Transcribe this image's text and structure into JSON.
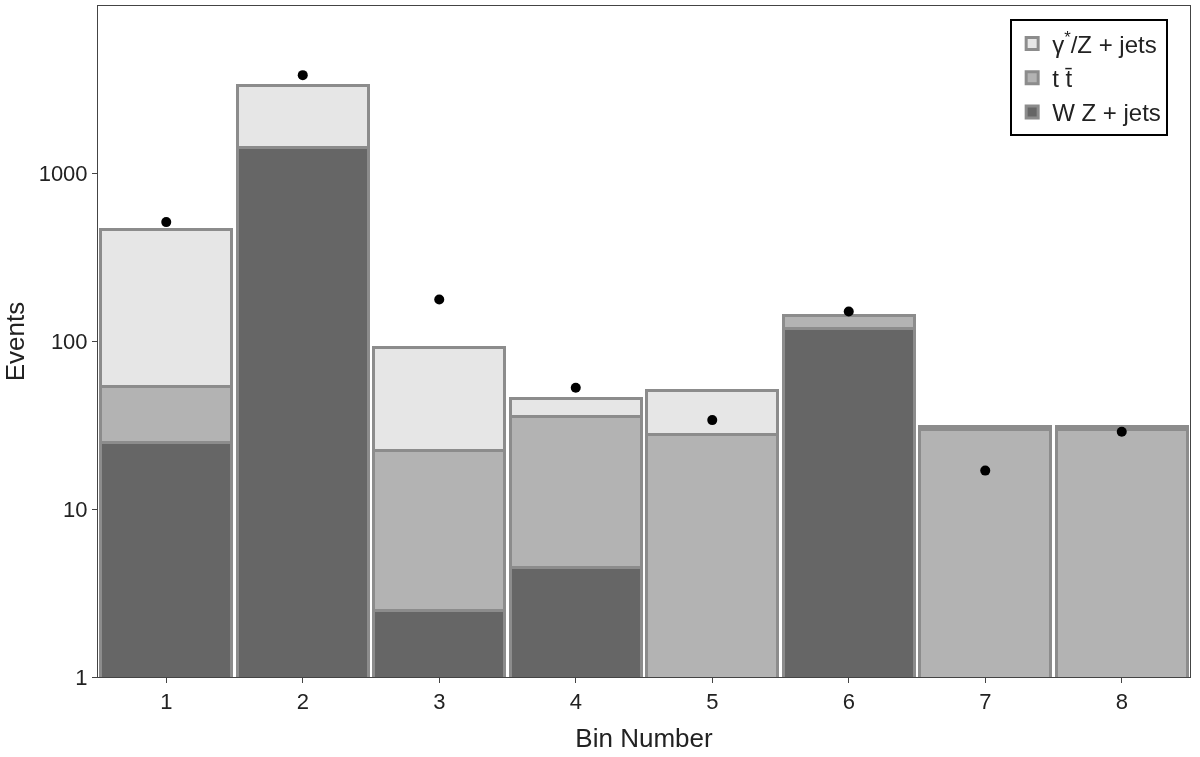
{
  "chart_data": {
    "type": "bar",
    "xlabel": "Bin Number",
    "ylabel": "Events",
    "categories": [
      "1",
      "2",
      "3",
      "4",
      "5",
      "6",
      "7",
      "8"
    ],
    "stacked": true,
    "log": "y",
    "ylim": [
      1,
      10000
    ],
    "yticks": [
      1,
      10,
      100,
      1000
    ],
    "legend": "top right",
    "series": [
      {
        "name": "W Z + jets",
        "color": "#666666",
        "values": [
          25,
          1430,
          2.5,
          4.5,
          null,
          120,
          null,
          null
        ]
      },
      {
        "name": "t t̄",
        "color": "#b3b3b3",
        "values": [
          29,
          null,
          20,
          31,
          28,
          22,
          30,
          30
        ]
      },
      {
        "name": "γ$^{*}$/Z + jets",
        "color": "#e6e6e6",
        "values": [
          413,
          1940,
          70,
          10,
          23,
          1,
          1,
          1
        ]
      },
      {
        "type": "scatter",
        "color": "#000000",
        "marker": "circle",
        "values": [
          515,
          3870,
          178,
          53,
          34,
          151,
          17,
          29
        ]
      }
    ]
  }
}
